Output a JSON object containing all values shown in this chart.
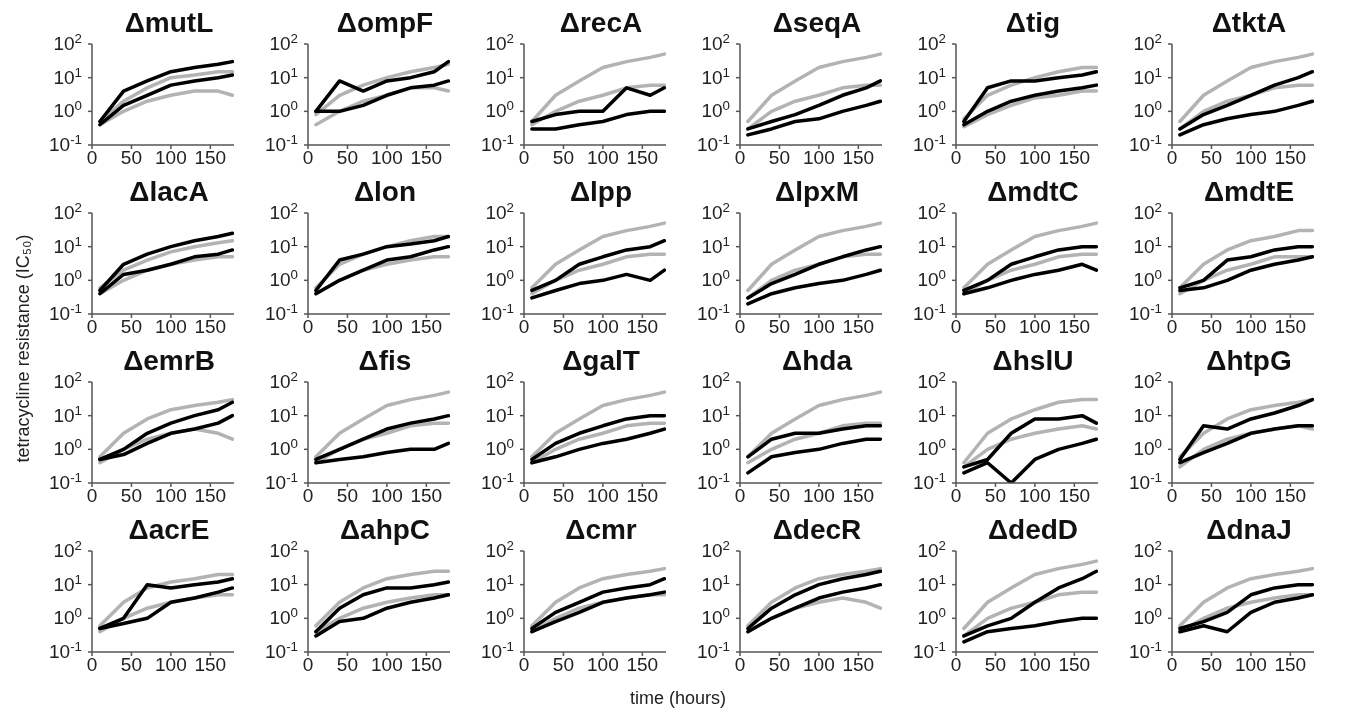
{
  "chart_data": [
    {
      "type": "line",
      "title": "ΔmutL",
      "log": "y",
      "marker": "none",
      "xlim": [
        0,
        180
      ],
      "xticks": [
        0,
        50,
        100,
        150
      ],
      "ylim": [
        0.1,
        100
      ],
      "yticks": [
        {
          "value": 0.1,
          "label": "10$^{-1}$"
        },
        {
          "value": 1,
          "label": "10$^{0}$"
        },
        {
          "value": 10,
          "label": "10$^{1}$"
        },
        {
          "value": 100,
          "label": "10$^{2}$"
        }
      ],
      "x": [
        10,
        40,
        70,
        100,
        130,
        160,
        178
      ],
      "series": [
        {
          "color": "#b3b3b3",
          "values": [
            0.5,
            2,
            5,
            10,
            12,
            15,
            15
          ]
        },
        {
          "color": "#b3b3b3",
          "values": [
            0.4,
            1,
            2,
            3,
            4,
            4,
            3
          ]
        },
        {
          "color": "#000000",
          "values": [
            0.5,
            4,
            8,
            15,
            20,
            25,
            30
          ]
        },
        {
          "color": "#000000",
          "values": [
            0.4,
            1.5,
            3,
            6,
            8,
            10,
            12
          ]
        }
      ]
    },
    {
      "type": "line",
      "title": "ΔompF",
      "log": "y",
      "marker": "none",
      "xlim": [
        0,
        180
      ],
      "xticks": [
        0,
        50,
        100,
        150
      ],
      "ylim": [
        0.1,
        100
      ],
      "yticks": [
        {
          "value": 0.1,
          "label": "10$^{-1}$"
        },
        {
          "value": 1,
          "label": "10$^{0}$"
        },
        {
          "value": 10,
          "label": "10$^{1}$"
        },
        {
          "value": 100,
          "label": "10$^{2}$"
        }
      ],
      "x": [
        10,
        40,
        70,
        100,
        130,
        160,
        178
      ],
      "series": [
        {
          "color": "#b3b3b3",
          "values": [
            0.8,
            3,
            6,
            10,
            15,
            20,
            25
          ]
        },
        {
          "color": "#b3b3b3",
          "values": [
            0.4,
            1,
            2,
            3,
            5,
            5,
            4
          ]
        },
        {
          "color": "#000000",
          "values": [
            1,
            8,
            4,
            8,
            10,
            15,
            30
          ]
        },
        {
          "color": "#000000",
          "values": [
            1,
            1,
            1.5,
            3,
            5,
            6,
            8
          ]
        }
      ]
    },
    {
      "type": "line",
      "title": "ΔrecA",
      "log": "y",
      "marker": "none",
      "xlim": [
        0,
        180
      ],
      "xticks": [
        0,
        50,
        100,
        150
      ],
      "ylim": [
        0.1,
        100
      ],
      "yticks": [
        {
          "value": 0.1,
          "label": "10$^{-1}$"
        },
        {
          "value": 1,
          "label": "10$^{0}$"
        },
        {
          "value": 10,
          "label": "10$^{1}$"
        },
        {
          "value": 100,
          "label": "10$^{2}$"
        }
      ],
      "x": [
        10,
        40,
        70,
        100,
        130,
        160,
        178
      ],
      "series": [
        {
          "color": "#b3b3b3",
          "values": [
            0.5,
            3,
            8,
            20,
            30,
            40,
            50
          ]
        },
        {
          "color": "#b3b3b3",
          "values": [
            0.4,
            1,
            2,
            3,
            5,
            6,
            6
          ]
        },
        {
          "color": "#000000",
          "values": [
            0.5,
            0.8,
            1,
            1,
            5,
            3,
            5
          ]
        },
        {
          "color": "#000000",
          "values": [
            0.3,
            0.3,
            0.4,
            0.5,
            0.8,
            1,
            1
          ]
        }
      ]
    },
    {
      "type": "line",
      "title": "ΔseqA",
      "log": "y",
      "marker": "none",
      "xlim": [
        0,
        180
      ],
      "xticks": [
        0,
        50,
        100,
        150
      ],
      "ylim": [
        0.1,
        100
      ],
      "yticks": [
        {
          "value": 0.1,
          "label": "10$^{-1}$"
        },
        {
          "value": 1,
          "label": "10$^{0}$"
        },
        {
          "value": 10,
          "label": "10$^{1}$"
        },
        {
          "value": 100,
          "label": "10$^{2}$"
        }
      ],
      "x": [
        10,
        40,
        70,
        100,
        130,
        160,
        178
      ],
      "series": [
        {
          "color": "#b3b3b3",
          "values": [
            0.5,
            3,
            8,
            20,
            30,
            40,
            50
          ]
        },
        {
          "color": "#b3b3b3",
          "values": [
            0.3,
            1,
            2,
            3,
            5,
            6,
            6
          ]
        },
        {
          "color": "#000000",
          "values": [
            0.3,
            0.5,
            0.8,
            1.5,
            3,
            5,
            8
          ]
        },
        {
          "color": "#000000",
          "values": [
            0.2,
            0.3,
            0.5,
            0.6,
            1,
            1.5,
            2
          ]
        }
      ]
    },
    {
      "type": "line",
      "title": "Δtig",
      "log": "y",
      "marker": "none",
      "xlim": [
        0,
        180
      ],
      "xticks": [
        0,
        50,
        100,
        150
      ],
      "ylim": [
        0.1,
        100
      ],
      "yticks": [
        {
          "value": 0.1,
          "label": "10$^{-1}$"
        },
        {
          "value": 1,
          "label": "10$^{0}$"
        },
        {
          "value": 10,
          "label": "10$^{1}$"
        },
        {
          "value": 100,
          "label": "10$^{2}$"
        }
      ],
      "x": [
        10,
        40,
        70,
        100,
        130,
        160,
        178
      ],
      "series": [
        {
          "color": "#b3b3b3",
          "values": [
            0.6,
            3,
            6,
            10,
            15,
            20,
            20
          ]
        },
        {
          "color": "#b3b3b3",
          "values": [
            0.35,
            0.8,
            1.5,
            2.5,
            3,
            4,
            4
          ]
        },
        {
          "color": "#000000",
          "values": [
            0.5,
            5,
            8,
            8,
            10,
            12,
            15
          ]
        },
        {
          "color": "#000000",
          "values": [
            0.4,
            1,
            2,
            3,
            4,
            5,
            6
          ]
        }
      ]
    },
    {
      "type": "line",
      "title": "ΔtktA",
      "log": "y",
      "marker": "none",
      "xlim": [
        0,
        180
      ],
      "xticks": [
        0,
        50,
        100,
        150
      ],
      "ylim": [
        0.1,
        100
      ],
      "yticks": [
        {
          "value": 0.1,
          "label": "10$^{-1}$"
        },
        {
          "value": 1,
          "label": "10$^{0}$"
        },
        {
          "value": 10,
          "label": "10$^{1}$"
        },
        {
          "value": 100,
          "label": "10$^{2}$"
        }
      ],
      "x": [
        10,
        40,
        70,
        100,
        130,
        160,
        178
      ],
      "series": [
        {
          "color": "#b3b3b3",
          "values": [
            0.5,
            3,
            8,
            20,
            30,
            40,
            50
          ]
        },
        {
          "color": "#b3b3b3",
          "values": [
            0.3,
            1,
            2,
            3,
            5,
            6,
            6
          ]
        },
        {
          "color": "#000000",
          "values": [
            0.3,
            0.8,
            1.5,
            3,
            6,
            10,
            15
          ]
        },
        {
          "color": "#000000",
          "values": [
            0.2,
            0.4,
            0.6,
            0.8,
            1,
            1.5,
            2
          ]
        }
      ]
    },
    {
      "type": "line",
      "title": "ΔlacA",
      "log": "y",
      "marker": "none",
      "xlim": [
        0,
        180
      ],
      "xticks": [
        0,
        50,
        100,
        150
      ],
      "ylim": [
        0.1,
        100
      ],
      "yticks": [
        {
          "value": 0.1,
          "label": "10$^{-1}$"
        },
        {
          "value": 1,
          "label": "10$^{0}$"
        },
        {
          "value": 10,
          "label": "10$^{1}$"
        },
        {
          "value": 100,
          "label": "10$^{2}$"
        }
      ],
      "x": [
        10,
        40,
        70,
        100,
        130,
        160,
        178
      ],
      "series": [
        {
          "color": "#b3b3b3",
          "values": [
            0.6,
            2,
            4,
            7,
            10,
            13,
            15
          ]
        },
        {
          "color": "#b3b3b3",
          "values": [
            0.4,
            1,
            2,
            3,
            4,
            5,
            5
          ]
        },
        {
          "color": "#000000",
          "values": [
            0.5,
            3,
            6,
            10,
            15,
            20,
            25
          ]
        },
        {
          "color": "#000000",
          "values": [
            0.4,
            1.5,
            2,
            3,
            5,
            6,
            8
          ]
        }
      ]
    },
    {
      "type": "line",
      "title": "Δlon",
      "log": "y",
      "marker": "none",
      "xlim": [
        0,
        180
      ],
      "xticks": [
        0,
        50,
        100,
        150
      ],
      "ylim": [
        0.1,
        100
      ],
      "yticks": [
        {
          "value": 0.1,
          "label": "10$^{-1}$"
        },
        {
          "value": 1,
          "label": "10$^{0}$"
        },
        {
          "value": 10,
          "label": "10$^{1}$"
        },
        {
          "value": 100,
          "label": "10$^{2}$"
        }
      ],
      "x": [
        10,
        40,
        70,
        100,
        130,
        160,
        178
      ],
      "series": [
        {
          "color": "#b3b3b3",
          "values": [
            0.6,
            3,
            6,
            10,
            15,
            20,
            20
          ]
        },
        {
          "color": "#b3b3b3",
          "values": [
            0.4,
            1,
            2,
            3,
            4,
            5,
            5
          ]
        },
        {
          "color": "#000000",
          "values": [
            0.5,
            4,
            6,
            10,
            12,
            15,
            20
          ]
        },
        {
          "color": "#000000",
          "values": [
            0.4,
            1,
            2,
            4,
            5,
            8,
            10
          ]
        }
      ]
    },
    {
      "type": "line",
      "title": "Δlpp",
      "log": "y",
      "marker": "none",
      "xlim": [
        0,
        180
      ],
      "xticks": [
        0,
        50,
        100,
        150
      ],
      "ylim": [
        0.1,
        100
      ],
      "yticks": [
        {
          "value": 0.1,
          "label": "10$^{-1}$"
        },
        {
          "value": 1,
          "label": "10$^{0}$"
        },
        {
          "value": 10,
          "label": "10$^{1}$"
        },
        {
          "value": 100,
          "label": "10$^{2}$"
        }
      ],
      "x": [
        10,
        40,
        70,
        100,
        130,
        160,
        178
      ],
      "series": [
        {
          "color": "#b3b3b3",
          "values": [
            0.6,
            3,
            8,
            20,
            30,
            40,
            50
          ]
        },
        {
          "color": "#b3b3b3",
          "values": [
            0.4,
            1,
            2,
            3,
            5,
            6,
            6
          ]
        },
        {
          "color": "#000000",
          "values": [
            0.5,
            1,
            3,
            5,
            8,
            10,
            15
          ]
        },
        {
          "color": "#000000",
          "values": [
            0.3,
            0.5,
            0.8,
            1,
            1.5,
            1,
            2
          ]
        }
      ]
    },
    {
      "type": "line",
      "title": "ΔlpxM",
      "log": "y",
      "marker": "none",
      "xlim": [
        0,
        180
      ],
      "xticks": [
        0,
        50,
        100,
        150
      ],
      "ylim": [
        0.1,
        100
      ],
      "yticks": [
        {
          "value": 0.1,
          "label": "10$^{-1}$"
        },
        {
          "value": 1,
          "label": "10$^{0}$"
        },
        {
          "value": 10,
          "label": "10$^{1}$"
        },
        {
          "value": 100,
          "label": "10$^{2}$"
        }
      ],
      "x": [
        10,
        40,
        70,
        100,
        130,
        160,
        178
      ],
      "series": [
        {
          "color": "#b3b3b3",
          "values": [
            0.5,
            3,
            8,
            20,
            30,
            40,
            50
          ]
        },
        {
          "color": "#b3b3b3",
          "values": [
            0.3,
            1,
            2,
            3,
            5,
            6,
            6
          ]
        },
        {
          "color": "#000000",
          "values": [
            0.3,
            0.8,
            1.5,
            3,
            5,
            8,
            10
          ]
        },
        {
          "color": "#000000",
          "values": [
            0.2,
            0.4,
            0.6,
            0.8,
            1,
            1.5,
            2
          ]
        }
      ]
    },
    {
      "type": "line",
      "title": "ΔmdtC",
      "log": "y",
      "marker": "none",
      "xlim": [
        0,
        180
      ],
      "xticks": [
        0,
        50,
        100,
        150
      ],
      "ylim": [
        0.1,
        100
      ],
      "yticks": [
        {
          "value": 0.1,
          "label": "10$^{-1}$"
        },
        {
          "value": 1,
          "label": "10$^{0}$"
        },
        {
          "value": 10,
          "label": "10$^{1}$"
        },
        {
          "value": 100,
          "label": "10$^{2}$"
        }
      ],
      "x": [
        10,
        40,
        70,
        100,
        130,
        160,
        178
      ],
      "series": [
        {
          "color": "#b3b3b3",
          "values": [
            0.6,
            3,
            8,
            20,
            30,
            40,
            50
          ]
        },
        {
          "color": "#b3b3b3",
          "values": [
            0.4,
            1,
            2,
            3,
            5,
            6,
            6
          ]
        },
        {
          "color": "#000000",
          "values": [
            0.5,
            1,
            3,
            5,
            8,
            10,
            10
          ]
        },
        {
          "color": "#000000",
          "values": [
            0.4,
            0.6,
            1,
            1.5,
            2,
            3,
            2
          ]
        }
      ]
    },
    {
      "type": "line",
      "title": "ΔmdtE",
      "log": "y",
      "marker": "none",
      "xlim": [
        0,
        180
      ],
      "xticks": [
        0,
        50,
        100,
        150
      ],
      "ylim": [
        0.1,
        100
      ],
      "yticks": [
        {
          "value": 0.1,
          "label": "10$^{-1}$"
        },
        {
          "value": 1,
          "label": "10$^{0}$"
        },
        {
          "value": 10,
          "label": "10$^{1}$"
        },
        {
          "value": 100,
          "label": "10$^{2}$"
        }
      ],
      "x": [
        10,
        40,
        70,
        100,
        130,
        160,
        178
      ],
      "series": [
        {
          "color": "#b3b3b3",
          "values": [
            0.6,
            3,
            8,
            15,
            20,
            30,
            30
          ]
        },
        {
          "color": "#b3b3b3",
          "values": [
            0.4,
            1,
            2,
            3,
            5,
            5,
            5
          ]
        },
        {
          "color": "#000000",
          "values": [
            0.6,
            1,
            4,
            5,
            8,
            10,
            10
          ]
        },
        {
          "color": "#000000",
          "values": [
            0.5,
            0.6,
            1,
            2,
            3,
            4,
            5
          ]
        }
      ]
    },
    {
      "type": "line",
      "title": "ΔemrB",
      "ylabel": "tetracycline resistance (IC₅₀)",
      "log": "y",
      "marker": "none",
      "xlim": [
        0,
        180
      ],
      "xticks": [
        0,
        50,
        100,
        150
      ],
      "ylim": [
        0.1,
        100
      ],
      "yticks": [
        {
          "value": 0.1,
          "label": "10$^{-1}$"
        },
        {
          "value": 1,
          "label": "10$^{0}$"
        },
        {
          "value": 10,
          "label": "10$^{1}$"
        },
        {
          "value": 100,
          "label": "10$^{2}$"
        }
      ],
      "x": [
        10,
        40,
        70,
        100,
        130,
        160,
        178
      ],
      "series": [
        {
          "color": "#b3b3b3",
          "values": [
            0.6,
            3,
            8,
            15,
            20,
            25,
            30
          ]
        },
        {
          "color": "#b3b3b3",
          "values": [
            0.4,
            1,
            2,
            3,
            4,
            3,
            2
          ]
        },
        {
          "color": "#000000",
          "values": [
            0.5,
            1,
            3,
            6,
            10,
            15,
            25
          ]
        },
        {
          "color": "#000000",
          "values": [
            0.5,
            0.7,
            1.5,
            3,
            4,
            6,
            10
          ]
        }
      ]
    },
    {
      "type": "line",
      "title": "Δfis",
      "log": "y",
      "marker": "none",
      "xlim": [
        0,
        180
      ],
      "xticks": [
        0,
        50,
        100,
        150
      ],
      "ylim": [
        0.1,
        100
      ],
      "yticks": [
        {
          "value": 0.1,
          "label": "10$^{-1}$"
        },
        {
          "value": 1,
          "label": "10$^{0}$"
        },
        {
          "value": 10,
          "label": "10$^{1}$"
        },
        {
          "value": 100,
          "label": "10$^{2}$"
        }
      ],
      "x": [
        10,
        40,
        70,
        100,
        130,
        160,
        178
      ],
      "series": [
        {
          "color": "#b3b3b3",
          "values": [
            0.6,
            3,
            8,
            20,
            30,
            40,
            50
          ]
        },
        {
          "color": "#b3b3b3",
          "values": [
            0.4,
            1,
            2,
            3,
            5,
            6,
            6
          ]
        },
        {
          "color": "#000000",
          "values": [
            0.5,
            1,
            2,
            4,
            6,
            8,
            10
          ]
        },
        {
          "color": "#000000",
          "values": [
            0.4,
            0.5,
            0.6,
            0.8,
            1,
            1,
            1.5
          ]
        }
      ]
    },
    {
      "type": "line",
      "title": "ΔgalT",
      "log": "y",
      "marker": "none",
      "xlim": [
        0,
        180
      ],
      "xticks": [
        0,
        50,
        100,
        150
      ],
      "ylim": [
        0.1,
        100
      ],
      "yticks": [
        {
          "value": 0.1,
          "label": "10$^{-1}$"
        },
        {
          "value": 1,
          "label": "10$^{0}$"
        },
        {
          "value": 10,
          "label": "10$^{1}$"
        },
        {
          "value": 100,
          "label": "10$^{2}$"
        }
      ],
      "x": [
        10,
        40,
        70,
        100,
        130,
        160,
        178
      ],
      "series": [
        {
          "color": "#b3b3b3",
          "values": [
            0.6,
            3,
            8,
            20,
            30,
            40,
            50
          ]
        },
        {
          "color": "#b3b3b3",
          "values": [
            0.4,
            1,
            2,
            3,
            5,
            6,
            6
          ]
        },
        {
          "color": "#000000",
          "values": [
            0.5,
            1.5,
            3,
            5,
            8,
            10,
            10
          ]
        },
        {
          "color": "#000000",
          "values": [
            0.4,
            0.6,
            1,
            1.5,
            2,
            3,
            4
          ]
        }
      ]
    },
    {
      "type": "line",
      "title": "Δhda",
      "log": "y",
      "marker": "none",
      "xlim": [
        0,
        180
      ],
      "xticks": [
        0,
        50,
        100,
        150
      ],
      "ylim": [
        0.1,
        100
      ],
      "yticks": [
        {
          "value": 0.1,
          "label": "10$^{-1}$"
        },
        {
          "value": 1,
          "label": "10$^{0}$"
        },
        {
          "value": 10,
          "label": "10$^{1}$"
        },
        {
          "value": 100,
          "label": "10$^{2}$"
        }
      ],
      "x": [
        10,
        40,
        70,
        100,
        130,
        160,
        178
      ],
      "series": [
        {
          "color": "#b3b3b3",
          "values": [
            0.6,
            3,
            8,
            20,
            30,
            40,
            50
          ]
        },
        {
          "color": "#b3b3b3",
          "values": [
            0.4,
            1,
            2,
            3,
            5,
            6,
            6
          ]
        },
        {
          "color": "#000000",
          "values": [
            0.6,
            2,
            3,
            3,
            4,
            5,
            5
          ]
        },
        {
          "color": "#000000",
          "values": [
            0.2,
            0.6,
            0.8,
            1,
            1.5,
            2,
            2
          ]
        }
      ]
    },
    {
      "type": "line",
      "title": "ΔhslU",
      "log": "y",
      "marker": "none",
      "xlim": [
        0,
        180
      ],
      "xticks": [
        0,
        50,
        100,
        150
      ],
      "ylim": [
        0.1,
        100
      ],
      "yticks": [
        {
          "value": 0.1,
          "label": "10$^{-1}$"
        },
        {
          "value": 1,
          "label": "10$^{0}$"
        },
        {
          "value": 10,
          "label": "10$^{1}$"
        },
        {
          "value": 100,
          "label": "10$^{2}$"
        }
      ],
      "x": [
        10,
        40,
        70,
        100,
        130,
        160,
        178
      ],
      "series": [
        {
          "color": "#b3b3b3",
          "values": [
            0.4,
            3,
            8,
            15,
            25,
            30,
            30
          ]
        },
        {
          "color": "#b3b3b3",
          "values": [
            0.3,
            1,
            2,
            3,
            4,
            5,
            4
          ]
        },
        {
          "color": "#000000",
          "values": [
            0.3,
            0.5,
            3,
            8,
            8,
            10,
            6
          ]
        },
        {
          "color": "#000000",
          "values": [
            0.2,
            0.4,
            0.1,
            0.5,
            1,
            1.5,
            2
          ]
        }
      ]
    },
    {
      "type": "line",
      "title": "ΔhtpG",
      "log": "y",
      "marker": "none",
      "xlim": [
        0,
        180
      ],
      "xticks": [
        0,
        50,
        100,
        150
      ],
      "ylim": [
        0.1,
        100
      ],
      "yticks": [
        {
          "value": 0.1,
          "label": "10$^{-1}$"
        },
        {
          "value": 1,
          "label": "10$^{0}$"
        },
        {
          "value": 10,
          "label": "10$^{1}$"
        },
        {
          "value": 100,
          "label": "10$^{2}$"
        }
      ],
      "x": [
        10,
        40,
        70,
        100,
        130,
        160,
        178
      ],
      "series": [
        {
          "color": "#b3b3b3",
          "values": [
            0.6,
            3,
            8,
            15,
            20,
            25,
            30
          ]
        },
        {
          "color": "#b3b3b3",
          "values": [
            0.3,
            1,
            2,
            3,
            4,
            5,
            4
          ]
        },
        {
          "color": "#000000",
          "values": [
            0.5,
            5,
            4,
            8,
            12,
            20,
            30
          ]
        },
        {
          "color": "#000000",
          "values": [
            0.4,
            0.8,
            1.5,
            3,
            4,
            5,
            5
          ]
        }
      ]
    },
    {
      "type": "line",
      "title": "ΔacrE",
      "log": "y",
      "marker": "none",
      "xlim": [
        0,
        180
      ],
      "xticks": [
        0,
        50,
        100,
        150
      ],
      "ylim": [
        0.1,
        100
      ],
      "yticks": [
        {
          "value": 0.1,
          "label": "10$^{-1}$"
        },
        {
          "value": 1,
          "label": "10$^{0}$"
        },
        {
          "value": 10,
          "label": "10$^{1}$"
        },
        {
          "value": 100,
          "label": "10$^{2}$"
        }
      ],
      "x": [
        10,
        40,
        70,
        100,
        130,
        160,
        178
      ],
      "series": [
        {
          "color": "#b3b3b3",
          "values": [
            0.6,
            3,
            8,
            12,
            15,
            20,
            20
          ]
        },
        {
          "color": "#b3b3b3",
          "values": [
            0.4,
            1,
            2,
            3,
            4,
            5,
            5
          ]
        },
        {
          "color": "#000000",
          "values": [
            0.5,
            1,
            10,
            8,
            10,
            12,
            15
          ]
        },
        {
          "color": "#000000",
          "values": [
            0.5,
            0.7,
            1,
            3,
            4,
            6,
            8
          ]
        }
      ]
    },
    {
      "type": "line",
      "title": "ΔahpC",
      "log": "y",
      "marker": "none",
      "xlim": [
        0,
        180
      ],
      "xticks": [
        0,
        50,
        100,
        150
      ],
      "ylim": [
        0.1,
        100
      ],
      "yticks": [
        {
          "value": 0.1,
          "label": "10$^{-1}$"
        },
        {
          "value": 1,
          "label": "10$^{0}$"
        },
        {
          "value": 10,
          "label": "10$^{1}$"
        },
        {
          "value": 100,
          "label": "10$^{2}$"
        }
      ],
      "x": [
        10,
        40,
        70,
        100,
        130,
        160,
        178
      ],
      "series": [
        {
          "color": "#b3b3b3",
          "values": [
            0.6,
            3,
            8,
            15,
            20,
            25,
            25
          ]
        },
        {
          "color": "#b3b3b3",
          "values": [
            0.4,
            1,
            2,
            3,
            4,
            5,
            5
          ]
        },
        {
          "color": "#000000",
          "values": [
            0.4,
            2,
            5,
            8,
            8,
            10,
            12
          ]
        },
        {
          "color": "#000000",
          "values": [
            0.3,
            0.8,
            1,
            2,
            3,
            4,
            5
          ]
        }
      ]
    },
    {
      "type": "line",
      "title": "Δcmr",
      "xlabel": "time (hours)",
      "log": "y",
      "marker": "none",
      "xlim": [
        0,
        180
      ],
      "xticks": [
        0,
        50,
        100,
        150
      ],
      "ylim": [
        0.1,
        100
      ],
      "yticks": [
        {
          "value": 0.1,
          "label": "10$^{-1}$"
        },
        {
          "value": 1,
          "label": "10$^{0}$"
        },
        {
          "value": 10,
          "label": "10$^{1}$"
        },
        {
          "value": 100,
          "label": "10$^{2}$"
        }
      ],
      "x": [
        10,
        40,
        70,
        100,
        130,
        160,
        178
      ],
      "series": [
        {
          "color": "#b3b3b3",
          "values": [
            0.6,
            3,
            8,
            15,
            20,
            25,
            30
          ]
        },
        {
          "color": "#b3b3b3",
          "values": [
            0.4,
            1,
            2,
            3,
            4,
            5,
            5
          ]
        },
        {
          "color": "#000000",
          "values": [
            0.5,
            1.5,
            3,
            6,
            8,
            10,
            15
          ]
        },
        {
          "color": "#000000",
          "values": [
            0.4,
            0.8,
            1.5,
            3,
            4,
            5,
            6
          ]
        }
      ]
    },
    {
      "type": "line",
      "title": "ΔdecR",
      "log": "y",
      "marker": "none",
      "xlim": [
        0,
        180
      ],
      "xticks": [
        0,
        50,
        100,
        150
      ],
      "ylim": [
        0.1,
        100
      ],
      "yticks": [
        {
          "value": 0.1,
          "label": "10$^{-1}$"
        },
        {
          "value": 1,
          "label": "10$^{0}$"
        },
        {
          "value": 10,
          "label": "10$^{1}$"
        },
        {
          "value": 100,
          "label": "10$^{2}$"
        }
      ],
      "x": [
        10,
        40,
        70,
        100,
        130,
        160,
        178
      ],
      "series": [
        {
          "color": "#b3b3b3",
          "values": [
            0.6,
            3,
            8,
            15,
            20,
            25,
            30
          ]
        },
        {
          "color": "#b3b3b3",
          "values": [
            0.4,
            1,
            2,
            3,
            4,
            3,
            2
          ]
        },
        {
          "color": "#000000",
          "values": [
            0.5,
            2,
            5,
            10,
            15,
            20,
            25
          ]
        },
        {
          "color": "#000000",
          "values": [
            0.4,
            1,
            2,
            4,
            6,
            8,
            10
          ]
        }
      ]
    },
    {
      "type": "line",
      "title": "ΔdedD",
      "log": "y",
      "marker": "none",
      "xlim": [
        0,
        180
      ],
      "xticks": [
        0,
        50,
        100,
        150
      ],
      "ylim": [
        0.1,
        100
      ],
      "yticks": [
        {
          "value": 0.1,
          "label": "10$^{-1}$"
        },
        {
          "value": 1,
          "label": "10$^{0}$"
        },
        {
          "value": 10,
          "label": "10$^{1}$"
        },
        {
          "value": 100,
          "label": "10$^{2}$"
        }
      ],
      "x": [
        10,
        40,
        70,
        100,
        130,
        160,
        178
      ],
      "series": [
        {
          "color": "#b3b3b3",
          "values": [
            0.5,
            3,
            8,
            20,
            30,
            40,
            50
          ]
        },
        {
          "color": "#b3b3b3",
          "values": [
            0.3,
            1,
            2,
            3,
            5,
            6,
            6
          ]
        },
        {
          "color": "#000000",
          "values": [
            0.3,
            0.6,
            1,
            3,
            8,
            15,
            25
          ]
        },
        {
          "color": "#000000",
          "values": [
            0.2,
            0.4,
            0.5,
            0.6,
            0.8,
            1,
            1
          ]
        }
      ]
    },
    {
      "type": "line",
      "title": "ΔdnaJ",
      "log": "y",
      "marker": "none",
      "xlim": [
        0,
        180
      ],
      "xticks": [
        0,
        50,
        100,
        150
      ],
      "ylim": [
        0.1,
        100
      ],
      "yticks": [
        {
          "value": 0.1,
          "label": "10$^{-1}$"
        },
        {
          "value": 1,
          "label": "10$^{0}$"
        },
        {
          "value": 10,
          "label": "10$^{1}$"
        },
        {
          "value": 100,
          "label": "10$^{2}$"
        }
      ],
      "x": [
        10,
        40,
        70,
        100,
        130,
        160,
        178
      ],
      "series": [
        {
          "color": "#b3b3b3",
          "values": [
            0.6,
            3,
            8,
            15,
            20,
            25,
            30
          ]
        },
        {
          "color": "#b3b3b3",
          "values": [
            0.4,
            1,
            2,
            3,
            4,
            5,
            5
          ]
        },
        {
          "color": "#000000",
          "values": [
            0.5,
            0.8,
            1.5,
            5,
            8,
            10,
            10
          ]
        },
        {
          "color": "#000000",
          "values": [
            0.4,
            0.6,
            0.4,
            1.5,
            3,
            4,
            5
          ]
        }
      ]
    }
  ]
}
